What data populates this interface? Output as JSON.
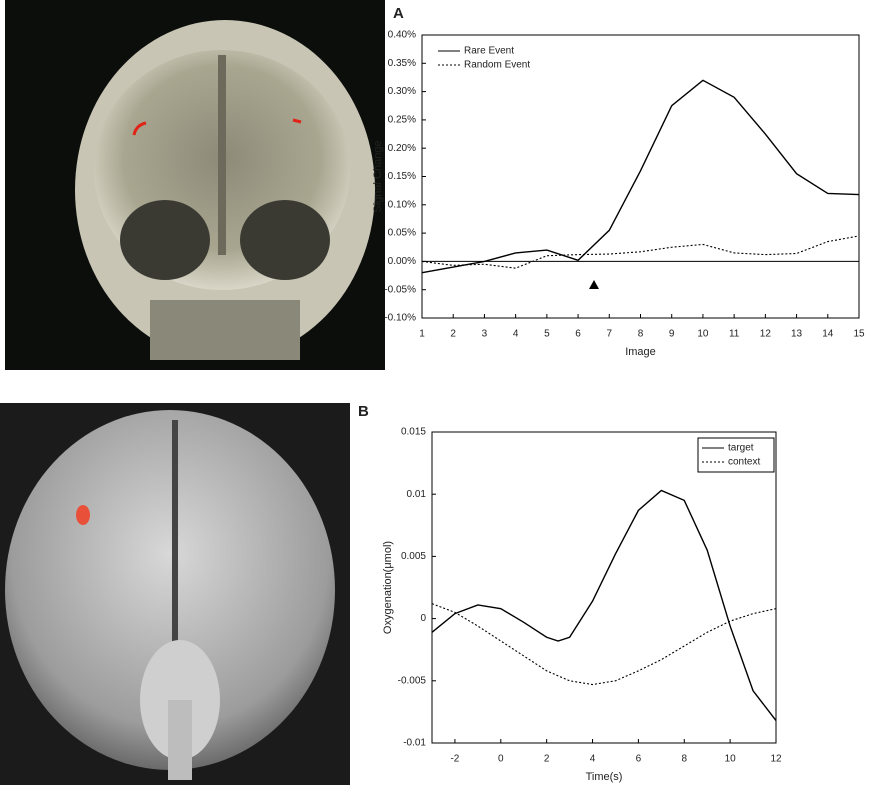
{
  "chart_data": [
    {
      "type": "line",
      "panel_label": "A",
      "xlabel": "Image",
      "ylabel": "Signal Change",
      "x": [
        1,
        2,
        3,
        4,
        5,
        6,
        7,
        8,
        9,
        10,
        11,
        12,
        13,
        14,
        15
      ],
      "series": [
        {
          "name": "Rare Event",
          "color": "#000000",
          "style": "solid",
          "values": [
            -0.02,
            -0.01,
            0.0,
            0.015,
            0.02,
            0.002,
            0.055,
            0.16,
            0.275,
            0.32,
            0.29,
            0.225,
            0.155,
            0.12,
            0.118
          ]
        },
        {
          "name": "Random Event",
          "color": "#000000",
          "style": "dotted",
          "values": [
            0.0,
            -0.007,
            -0.005,
            -0.012,
            0.01,
            0.012,
            0.013,
            0.017,
            0.025,
            0.03,
            0.015,
            0.012,
            0.014,
            0.035,
            0.045
          ]
        }
      ],
      "xlim": [
        1,
        15
      ],
      "xticks": [
        1,
        2,
        3,
        4,
        5,
        6,
        7,
        8,
        9,
        10,
        11,
        12,
        13,
        14,
        15
      ],
      "ylim": [
        -0.1,
        0.4
      ],
      "yticks": [
        {
          "value": -0.1,
          "label": "-0.10%"
        },
        {
          "value": -0.05,
          "label": "-0.05%"
        },
        {
          "value": 0,
          "label": "0.00%"
        },
        {
          "value": 0.05,
          "label": "0.05%"
        },
        {
          "value": 0.1,
          "label": "0.10%"
        },
        {
          "value": 0.15,
          "label": "0.15%"
        },
        {
          "value": 0.2,
          "label": "0.20%"
        },
        {
          "value": 0.25,
          "label": "0.25%"
        },
        {
          "value": 0.3,
          "label": "0.30%"
        },
        {
          "value": 0.35,
          "label": "0.35%"
        },
        {
          "value": 0.4,
          "label": "0.40%"
        }
      ],
      "zero_line": true,
      "legend": "upper left",
      "legend_box": false
    },
    {
      "type": "line",
      "panel_label": "B",
      "xlabel": "Time(s)",
      "ylabel": "Oxygenation(μmol)",
      "x": [
        -3,
        -2,
        -1,
        0,
        1,
        2,
        2.5,
        3,
        4,
        5,
        6,
        7,
        8,
        9,
        10,
        11,
        12
      ],
      "series": [
        {
          "name": "target",
          "color": "#000000",
          "style": "solid",
          "values": [
            -0.0011,
            0.0004,
            0.0011,
            0.0008,
            -0.0003,
            -0.0015,
            -0.0018,
            -0.0015,
            0.0014,
            0.0052,
            0.0087,
            0.0103,
            0.0095,
            0.0055,
            -0.0006,
            -0.0058,
            -0.0082
          ]
        },
        {
          "name": "context",
          "color": "#000000",
          "style": "dotted",
          "values": [
            0.0012,
            0.0005,
            -0.0006,
            -0.0018,
            -0.003,
            -0.0042,
            -0.0046,
            -0.005,
            -0.0053,
            -0.005,
            -0.0042,
            -0.0033,
            -0.0022,
            -0.0011,
            -0.0002,
            0.0004,
            0.0008
          ]
        }
      ],
      "xlim": [
        -3,
        12
      ],
      "xticks": [
        -2,
        0,
        2,
        4,
        6,
        8,
        10,
        12
      ],
      "ylim": [
        -0.01,
        0.015
      ],
      "yticks": [
        -0.01,
        -0.005,
        0,
        0.005,
        0.01,
        0.015
      ],
      "zero_line": false,
      "legend": "upper right",
      "legend_box": true
    }
  ]
}
